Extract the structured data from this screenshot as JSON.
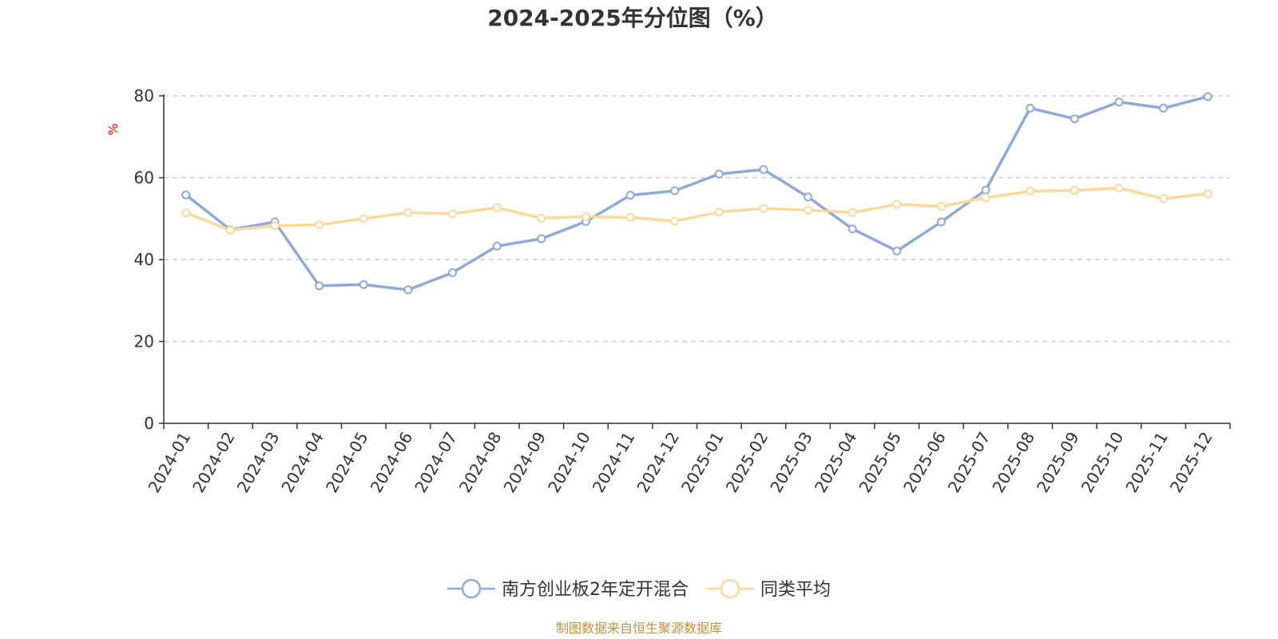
{
  "chart_data": {
    "type": "line",
    "title": "2024-2025年分位图（%）",
    "ylabel": "%",
    "xlabel": "",
    "ylim": [
      0,
      80
    ],
    "yticks": [
      0,
      20,
      40,
      60,
      80
    ],
    "grid": true,
    "legend_position": "bottom",
    "categories": [
      "2024-01",
      "2024-02",
      "2024-03",
      "2024-04",
      "2024-05",
      "2024-06",
      "2024-07",
      "2024-08",
      "2024-09",
      "2024-10",
      "2024-11",
      "2024-12",
      "2025-01",
      "2025-02",
      "2025-03",
      "2025-04",
      "2025-05",
      "2025-06",
      "2025-07",
      "2025-08",
      "2025-09",
      "2025-10",
      "2025-11",
      "2025-12"
    ],
    "series": [
      {
        "name": "南方创业板2年定开混合",
        "color": "#8eaadb",
        "values": [
          55.8,
          47.3,
          49.2,
          33.6,
          33.9,
          32.6,
          36.8,
          43.3,
          45.1,
          49.3,
          55.7,
          56.8,
          60.9,
          62.0,
          55.3,
          47.5,
          42.1,
          49.2,
          57.0,
          77.0,
          74.4,
          78.5,
          77.0,
          79.8
        ]
      },
      {
        "name": "同类平均",
        "color": "#fcd998",
        "values": [
          51.4,
          47.2,
          48.3,
          48.5,
          50.0,
          51.5,
          51.2,
          52.7,
          50.1,
          50.5,
          50.3,
          49.4,
          51.6,
          52.5,
          52.1,
          51.5,
          53.5,
          53.0,
          55.1,
          56.7,
          56.9,
          57.5,
          54.9,
          56.1
        ]
      }
    ],
    "source": "制图数据来自恒生聚源数据库"
  }
}
